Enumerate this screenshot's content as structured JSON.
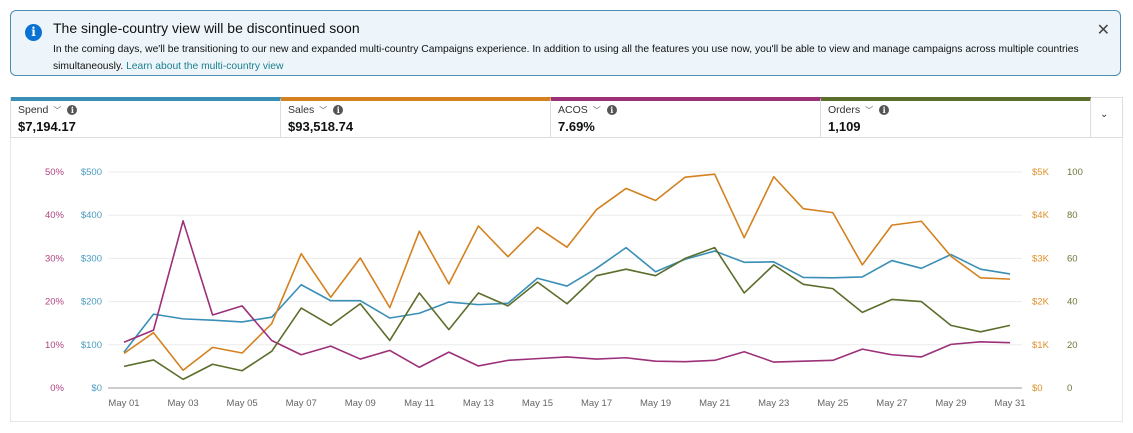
{
  "banner": {
    "title": "The single-country view will be discontinued soon",
    "text": "In the coming days, we'll be transitioning to our new and expanded multi-country Campaigns experience. In addition to using all the features you use now, you'll be able to view and manage campaigns across multiple countries simultaneously.",
    "link": "Learn about the multi-country view",
    "icon": "info-icon",
    "close_icon": "close-icon"
  },
  "metrics": [
    {
      "label": "Spend",
      "value": "$7,194.17",
      "color": "#3a8fb7"
    },
    {
      "label": "Sales",
      "value": "$93,518.74",
      "color": "#d4811f"
    },
    {
      "label": "ACOS",
      "value": "7.69%",
      "color": "#9c3079"
    },
    {
      "label": "Orders",
      "value": "1,109",
      "color": "#5b6e2c"
    }
  ],
  "chart_data": {
    "type": "line",
    "x": [
      "May 01",
      "May 02",
      "May 03",
      "May 04",
      "May 05",
      "May 06",
      "May 07",
      "May 08",
      "May 09",
      "May 10",
      "May 11",
      "May 12",
      "May 13",
      "May 14",
      "May 15",
      "May 16",
      "May 17",
      "May 18",
      "May 19",
      "May 20",
      "May 21",
      "May 22",
      "May 23",
      "May 24",
      "May 25",
      "May 26",
      "May 27",
      "May 28",
      "May 29",
      "May 30",
      "May 31"
    ],
    "x_tick_labels": [
      "May 01",
      "May 03",
      "May 05",
      "May 07",
      "May 09",
      "May 11",
      "May 13",
      "May 15",
      "May 17",
      "May 19",
      "May 21",
      "May 23",
      "May 25",
      "May 27",
      "May 29",
      "May 31"
    ],
    "grid": true,
    "axes": {
      "left_outer": {
        "series": "ACOS",
        "ticks": [
          "0%",
          "10%",
          "20%",
          "30%",
          "40%",
          "50%"
        ],
        "range": [
          0,
          50
        ],
        "color": "#b0447f"
      },
      "left_inner": {
        "series": "Spend",
        "ticks": [
          "$0",
          "$100",
          "$200",
          "$300",
          "$400",
          "$500"
        ],
        "range": [
          0,
          500
        ],
        "color": "#4a9cc0"
      },
      "right_inner": {
        "series": "Sales",
        "ticks": [
          "$0",
          "$1K",
          "$2K",
          "$3K",
          "$4K",
          "$5K"
        ],
        "range": [
          0,
          5000
        ],
        "color": "#e0902a"
      },
      "right_outer": {
        "series": "Orders",
        "ticks": [
          "0",
          "20",
          "40",
          "60",
          "80",
          "100"
        ],
        "range": [
          0,
          100
        ],
        "color": "#6b7a3a"
      }
    },
    "series": [
      {
        "name": "Spend",
        "axis": "left_inner",
        "color": "#3a8fb7",
        "values": [
          83,
          171,
          160,
          157,
          153,
          164,
          239,
          202,
          202,
          162,
          173,
          199,
          193,
          196,
          254,
          236,
          277,
          325,
          269,
          298,
          317,
          291,
          292,
          256,
          255,
          257,
          295,
          277,
          309,
          275,
          264
        ]
      },
      {
        "name": "Sales",
        "axis": "right_inner",
        "color": "#d4811f",
        "values": [
          800,
          1280,
          410,
          940,
          810,
          1490,
          3110,
          2100,
          3010,
          1860,
          3630,
          2410,
          3750,
          3040,
          3720,
          3260,
          4130,
          4620,
          4340,
          4880,
          4950,
          3480,
          4890,
          4150,
          4060,
          2850,
          3770,
          3860,
          3050,
          2550,
          2520
        ]
      },
      {
        "name": "ACOS",
        "axis": "left_outer",
        "color": "#9c3079",
        "values": [
          10.6,
          13.4,
          38.7,
          16.9,
          19.0,
          11.0,
          7.7,
          9.7,
          6.7,
          8.7,
          4.8,
          8.3,
          5.1,
          6.4,
          6.8,
          7.2,
          6.7,
          7.0,
          6.2,
          6.1,
          6.4,
          8.4,
          6.0,
          6.2,
          6.4,
          9.0,
          7.7,
          7.2,
          10.1,
          10.7,
          10.5
        ]
      },
      {
        "name": "Orders",
        "axis": "right_outer",
        "color": "#5b6e2c",
        "values": [
          10,
          13,
          4,
          11,
          8,
          17,
          37,
          29,
          39,
          22,
          44,
          27,
          44,
          38,
          49,
          39,
          52,
          55,
          52,
          60,
          65,
          44,
          57,
          48,
          46,
          35,
          41,
          40,
          29,
          26,
          29
        ]
      }
    ]
  }
}
